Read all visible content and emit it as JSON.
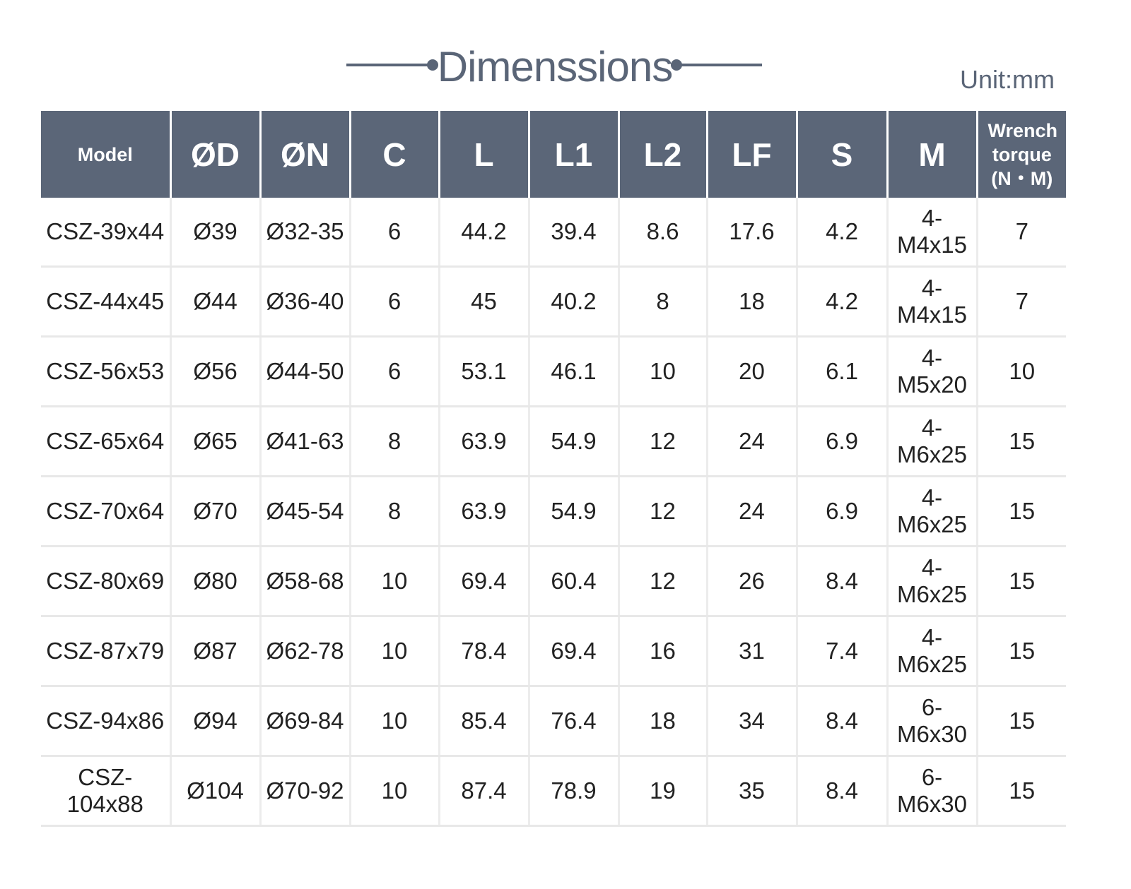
{
  "header": {
    "title": "Dimenssions",
    "unit": "Unit:mm"
  },
  "table": {
    "columns": [
      "Model",
      "ØD",
      "ØN",
      "C",
      "L",
      "L1",
      "L2",
      "LF",
      "S",
      "M",
      "Wrench torque (N・M)"
    ],
    "rows": [
      [
        "CSZ-39x44",
        "Ø39",
        "Ø32-35",
        "6",
        "44.2",
        "39.4",
        "8.6",
        "17.6",
        "4.2",
        "4-M4x15",
        "7"
      ],
      [
        "CSZ-44x45",
        "Ø44",
        "Ø36-40",
        "6",
        "45",
        "40.2",
        "8",
        "18",
        "4.2",
        "4-M4x15",
        "7"
      ],
      [
        "CSZ-56x53",
        "Ø56",
        "Ø44-50",
        "6",
        "53.1",
        "46.1",
        "10",
        "20",
        "6.1",
        "4-M5x20",
        "10"
      ],
      [
        "CSZ-65x64",
        "Ø65",
        "Ø41-63",
        "8",
        "63.9",
        "54.9",
        "12",
        "24",
        "6.9",
        "4-M6x25",
        "15"
      ],
      [
        "CSZ-70x64",
        "Ø70",
        "Ø45-54",
        "8",
        "63.9",
        "54.9",
        "12",
        "24",
        "6.9",
        "4-M6x25",
        "15"
      ],
      [
        "CSZ-80x69",
        "Ø80",
        "Ø58-68",
        "10",
        "69.4",
        "60.4",
        "12",
        "26",
        "8.4",
        "4-M6x25",
        "15"
      ],
      [
        "CSZ-87x79",
        "Ø87",
        "Ø62-78",
        "10",
        "78.4",
        "69.4",
        "16",
        "31",
        "7.4",
        "4-M6x25",
        "15"
      ],
      [
        "CSZ-94x86",
        "Ø94",
        "Ø69-84",
        "10",
        "85.4",
        "76.4",
        "18",
        "34",
        "8.4",
        "6-M6x30",
        "15"
      ],
      [
        "CSZ-104x88",
        "Ø104",
        "Ø70-92",
        "10",
        "87.4",
        "78.9",
        "19",
        "35",
        "8.4",
        "6-M6x30",
        "15"
      ]
    ]
  }
}
